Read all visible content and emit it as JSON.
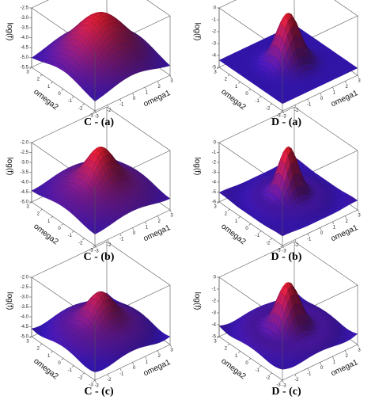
{
  "chart_data": [
    {
      "type": "surface",
      "caption": "C - (a)",
      "zlabel": "log(f)",
      "xlabel": "omega1",
      "ylabel": "omega2",
      "xlim": [
        -3,
        3
      ],
      "ylim": [
        -3,
        3
      ],
      "xticks": [
        -3,
        -2,
        -1,
        0,
        1,
        2,
        3
      ],
      "yticks": [
        -3,
        -2,
        -1,
        0,
        1,
        2,
        3
      ],
      "zlim": [
        -5.5,
        -2.5
      ],
      "zticks": [
        {
          "value": -2.5,
          "label": "-2.5"
        },
        {
          "value": -3,
          "label": "-3.0"
        },
        {
          "value": -3.5,
          "label": "-3.5"
        },
        {
          "value": -4,
          "label": "-4.0"
        },
        {
          "value": -4.5,
          "label": "-4.5"
        },
        {
          "value": -5,
          "label": "-5.0"
        },
        {
          "value": -5.5,
          "label": "-5.5"
        }
      ]
    },
    {
      "type": "surface",
      "caption": "D - (a)",
      "zlabel": "log(f)",
      "xlabel": "omega1",
      "ylabel": "omega2",
      "xlim": [
        -3,
        3
      ],
      "ylim": [
        -3,
        3
      ],
      "xticks": [
        -3,
        -2,
        -1,
        0,
        1,
        2,
        3
      ],
      "yticks": [
        -3,
        -2,
        -1,
        0,
        1,
        2,
        3
      ],
      "zlim": [
        -5,
        0
      ],
      "zticks": [
        0,
        -1,
        -2,
        -3,
        -4,
        -5
      ]
    },
    {
      "type": "surface",
      "caption": "C - (b)",
      "zlabel": "log(f)",
      "xlabel": "omega1",
      "ylabel": "omega2",
      "xlim": [
        -3,
        3
      ],
      "ylim": [
        -3,
        3
      ],
      "xticks": [
        -3,
        -2,
        -1,
        0,
        1,
        2,
        3
      ],
      "yticks": [
        -3,
        -2,
        -1,
        0,
        1,
        2,
        3
      ],
      "zlim": [
        -5,
        -2
      ],
      "zticks": [
        {
          "value": -2,
          "label": "-2.0"
        },
        {
          "value": -2.5,
          "label": "-2.5"
        },
        {
          "value": -3,
          "label": "-3.0"
        },
        {
          "value": -3.5,
          "label": "-3.5"
        },
        {
          "value": -4,
          "label": "-4.0"
        },
        {
          "value": -4.5,
          "label": "-4.5"
        },
        {
          "value": -5,
          "label": "-5.0"
        }
      ]
    },
    {
      "type": "surface",
      "caption": "D - (b)",
      "zlabel": "log(f)",
      "xlabel": "omega1",
      "ylabel": "omega2",
      "xlim": [
        -3,
        3
      ],
      "ylim": [
        -3,
        3
      ],
      "xticks": [
        -3,
        -2,
        -1,
        0,
        1,
        2,
        3
      ],
      "yticks": [
        -3,
        -2,
        -1,
        0,
        1,
        2,
        3
      ],
      "zlim": [
        -6,
        0
      ],
      "zticks": [
        0,
        -1,
        -2,
        -3,
        -4,
        -5,
        -6
      ]
    },
    {
      "type": "surface",
      "caption": "C - (c)",
      "zlabel": "log(f)",
      "xlabel": "omega1",
      "ylabel": "omega2",
      "xlim": [
        -3,
        3
      ],
      "ylim": [
        -3,
        3
      ],
      "xticks": [
        -3,
        -2,
        -1,
        0,
        1,
        2,
        3
      ],
      "yticks": [
        -3,
        -2,
        -1,
        0,
        1,
        2,
        3
      ],
      "zlim": [
        -5,
        -2
      ],
      "zticks": [
        {
          "value": -2,
          "label": "-2.0"
        },
        {
          "value": -2.5,
          "label": "-2.5"
        },
        {
          "value": -3,
          "label": "-3.0"
        },
        {
          "value": -3.5,
          "label": "-3.5"
        },
        {
          "value": -4,
          "label": "-4.0"
        },
        {
          "value": -4.5,
          "label": "-4.5"
        },
        {
          "value": -5,
          "label": "-5.0"
        }
      ]
    },
    {
      "type": "surface",
      "caption": "D - (c)",
      "zlabel": "log(f)",
      "xlabel": "omega1",
      "ylabel": "omega2",
      "xlim": [
        -3,
        3
      ],
      "ylim": [
        -3,
        3
      ],
      "xticks": [
        -3,
        -2,
        -1,
        0,
        1,
        2,
        3
      ],
      "yticks": [
        -3,
        -2,
        -1,
        0,
        1,
        2,
        3
      ],
      "zlim": [
        -5,
        0
      ],
      "zticks": [
        0,
        -1,
        -2,
        -3,
        -4,
        -5
      ]
    }
  ]
}
